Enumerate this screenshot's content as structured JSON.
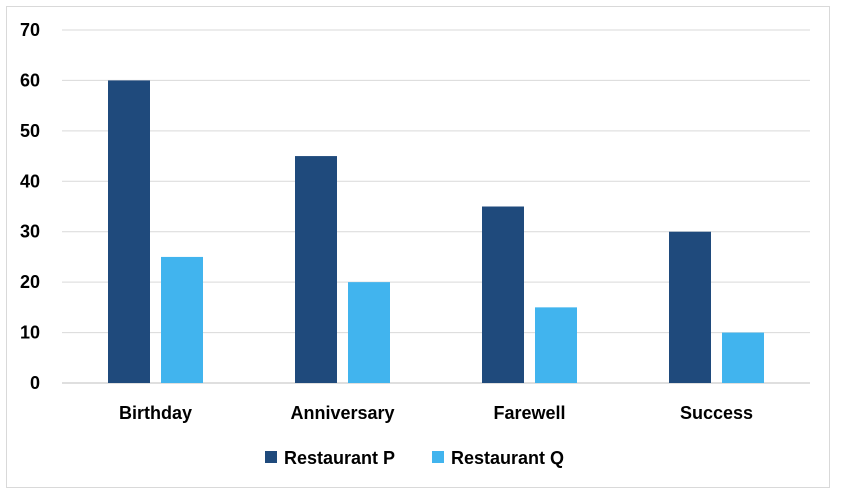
{
  "chart_data": {
    "type": "bar",
    "categories": [
      "Birthday",
      "Anniversary",
      "Farewell",
      "Success"
    ],
    "series": [
      {
        "name": "Restaurant P",
        "values": [
          60,
          45,
          35,
          30
        ],
        "color": "#1f4a7c"
      },
      {
        "name": "Restaurant Q",
        "values": [
          25,
          20,
          15,
          10
        ],
        "color": "#41b4ee"
      }
    ],
    "ylim": [
      0,
      70
    ],
    "yticks": [
      0,
      10,
      20,
      30,
      40,
      50,
      60,
      70
    ],
    "grid": true,
    "legend_position": "bottom"
  }
}
